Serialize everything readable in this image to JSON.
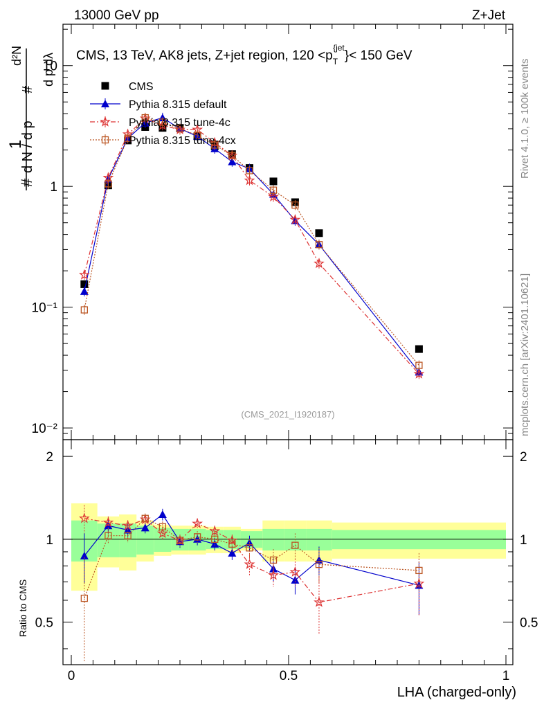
{
  "header": {
    "left": "13000 GeV pp",
    "right": "Z+Jet"
  },
  "side_labels": {
    "top": "Rivet 4.1.0, ≥ 100k events",
    "bottom": "mcplots.cern.ch [arXiv:2401.10621]"
  },
  "chart_data": {
    "type": "line",
    "title": "CMS, 13 TeV, AK8 jets, Z+jet region, 120 <p_T^{jet}< 150 GeV",
    "title_parts": {
      "main": "CMS, 13 TeV, AK8 jets, Z+jet region, 120 <p",
      "sub": "T",
      "sup": "{jet",
      "brace": "}",
      "tail": "< 150 GeV"
    },
    "analysis_id": "(CMS_2021_I1920187)",
    "xlabel": "LHA (charged-only)",
    "ylabel_top": "1/(dN/dp_T) d²N/(dp_T dλ)",
    "ylabel_bottom": "Ratio to CMS",
    "xlim": [
      0,
      1
    ],
    "ylim_main": [
      0.008,
      22
    ],
    "ylim_ratio": [
      0.35,
      2.3
    ],
    "x_tick_labels": [
      "0",
      "0.5",
      "1"
    ],
    "y_tick_labels_main": [
      "10⁻²",
      "10⁻¹",
      "1",
      "10"
    ],
    "y_tick_labels_ratio": [
      "0.5",
      "1",
      "2"
    ],
    "legend_position": "top-left",
    "x": [
      0.03,
      0.085,
      0.13,
      0.17,
      0.21,
      0.25,
      0.29,
      0.33,
      0.37,
      0.41,
      0.465,
      0.515,
      0.57,
      0.8
    ],
    "bin_edges": [
      0,
      0.06,
      0.11,
      0.15,
      0.19,
      0.23,
      0.27,
      0.31,
      0.35,
      0.39,
      0.44,
      0.49,
      0.54,
      0.6,
      1.0
    ],
    "series": [
      {
        "name": "CMS",
        "color": "#000000",
        "marker": "square",
        "values": [
          0.155,
          1.02,
          2.4,
          3.1,
          3.05,
          3.05,
          2.6,
          2.15,
          1.85,
          1.42,
          1.1,
          0.74,
          0.41,
          0.045
        ]
      },
      {
        "name": "Pythia 8.315 default",
        "color": "#0000cc",
        "marker": "triangle",
        "values": [
          0.135,
          1.15,
          2.5,
          3.35,
          3.7,
          3.0,
          2.6,
          2.05,
          1.6,
          1.4,
          0.86,
          0.52,
          0.33,
          0.029
        ],
        "ratio": [
          0.87,
          1.12,
          1.08,
          1.1,
          1.23,
          0.98,
          1.0,
          0.96,
          0.89,
          0.97,
          0.78,
          0.71,
          0.84,
          0.68
        ],
        "ratio_err": [
          0.18,
          0.07,
          0.06,
          0.05,
          0.06,
          0.05,
          0.05,
          0.05,
          0.05,
          0.06,
          0.08,
          0.08,
          0.1,
          0.15
        ]
      },
      {
        "name": "Pythia 8.315 tune-4c",
        "color": "#dd3333",
        "marker": "star",
        "values": [
          0.185,
          1.18,
          2.7,
          3.65,
          3.2,
          2.95,
          2.95,
          2.3,
          1.8,
          1.12,
          0.82,
          0.53,
          0.23,
          0.028
        ],
        "ratio": [
          1.19,
          1.15,
          1.12,
          1.18,
          1.05,
          0.99,
          1.14,
          1.07,
          0.99,
          0.81,
          0.74,
          0.76,
          0.59,
          0.69
        ],
        "ratio_err": [
          0.14,
          0.06,
          0.05,
          0.05,
          0.06,
          0.05,
          0.05,
          0.05,
          0.05,
          0.07,
          0.07,
          0.09,
          0.14,
          0.16
        ]
      },
      {
        "name": "Pythia 8.315 tune-4cx",
        "color": "#bb5522",
        "marker": "open-square",
        "values": [
          0.095,
          1.05,
          2.5,
          3.7,
          3.4,
          3.0,
          2.65,
          2.2,
          1.8,
          1.35,
          0.93,
          0.7,
          0.33,
          0.033
        ],
        "ratio": [
          0.61,
          1.03,
          1.03,
          1.19,
          1.11,
          0.99,
          1.02,
          1.0,
          0.96,
          0.93,
          0.84,
          0.95,
          0.81,
          0.77
        ],
        "ratio_err": [
          0.25,
          0.07,
          0.06,
          0.05,
          0.05,
          0.05,
          0.05,
          0.05,
          0.06,
          0.07,
          0.08,
          0.1,
          0.12,
          0.12
        ]
      }
    ],
    "band_inner_half": [
      0.17,
      0.14,
      0.14,
      0.12,
      0.1,
      0.09,
      0.09,
      0.08,
      0.08,
      0.07,
      0.09,
      0.09,
      0.09,
      0.08
    ],
    "band_outer_half": [
      0.35,
      0.21,
      0.23,
      0.17,
      0.13,
      0.12,
      0.12,
      0.11,
      0.11,
      0.09,
      0.17,
      0.17,
      0.17,
      0.15
    ]
  }
}
